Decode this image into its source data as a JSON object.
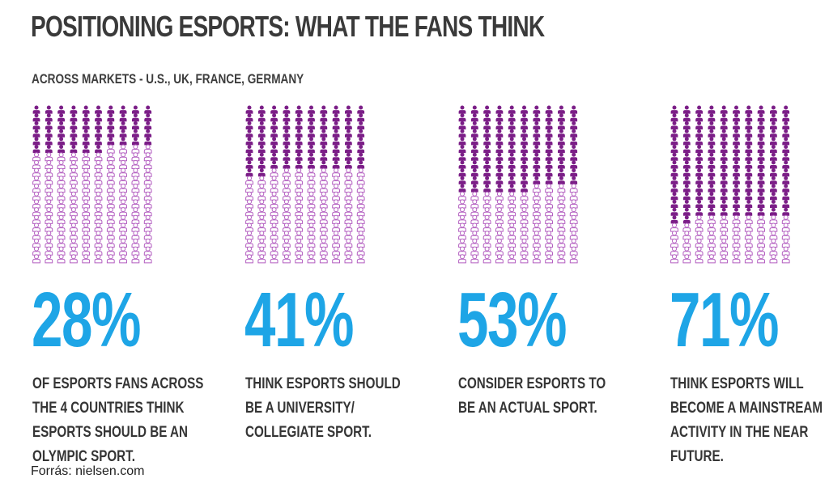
{
  "title": "POSITIONING ESPORTS: WHAT THE FANS THINK",
  "subtitle": "ACROSS MARKETS - U.S., UK, FRANCE, GERMANY",
  "source": "Forrás: nielsen.com",
  "colors": {
    "filled_icon": "#7b1e87",
    "outline_icon": "#b35ec0",
    "percent": "#1ea5e6",
    "text": "#353535"
  },
  "chart_data": {
    "type": "pictogram",
    "grid": {
      "rows": 20,
      "columns": 10,
      "icon": "person-icon"
    },
    "panels": [
      {
        "percent_label": "28%",
        "value": 28,
        "caption": "OF ESPORTS FANS ACROSS\nTHE 4 COUNTRIES THINK\nESPORTS SHOULD BE AN\nOLYMPIC SPORT."
      },
      {
        "percent_label": "41%",
        "value": 41,
        "caption": "THINK ESPORTS SHOULD\nBE A UNIVERSITY/\nCOLLEGIATE SPORT."
      },
      {
        "percent_label": "53%",
        "value": 53,
        "caption": "CONSIDER ESPORTS TO\nBE AN ACTUAL SPORT."
      },
      {
        "percent_label": "71%",
        "value": 71,
        "caption": "THINK ESPORTS WILL\nBECOME A MAINSTREAM\nACTIVITY IN THE NEAR\nFUTURE."
      }
    ]
  }
}
